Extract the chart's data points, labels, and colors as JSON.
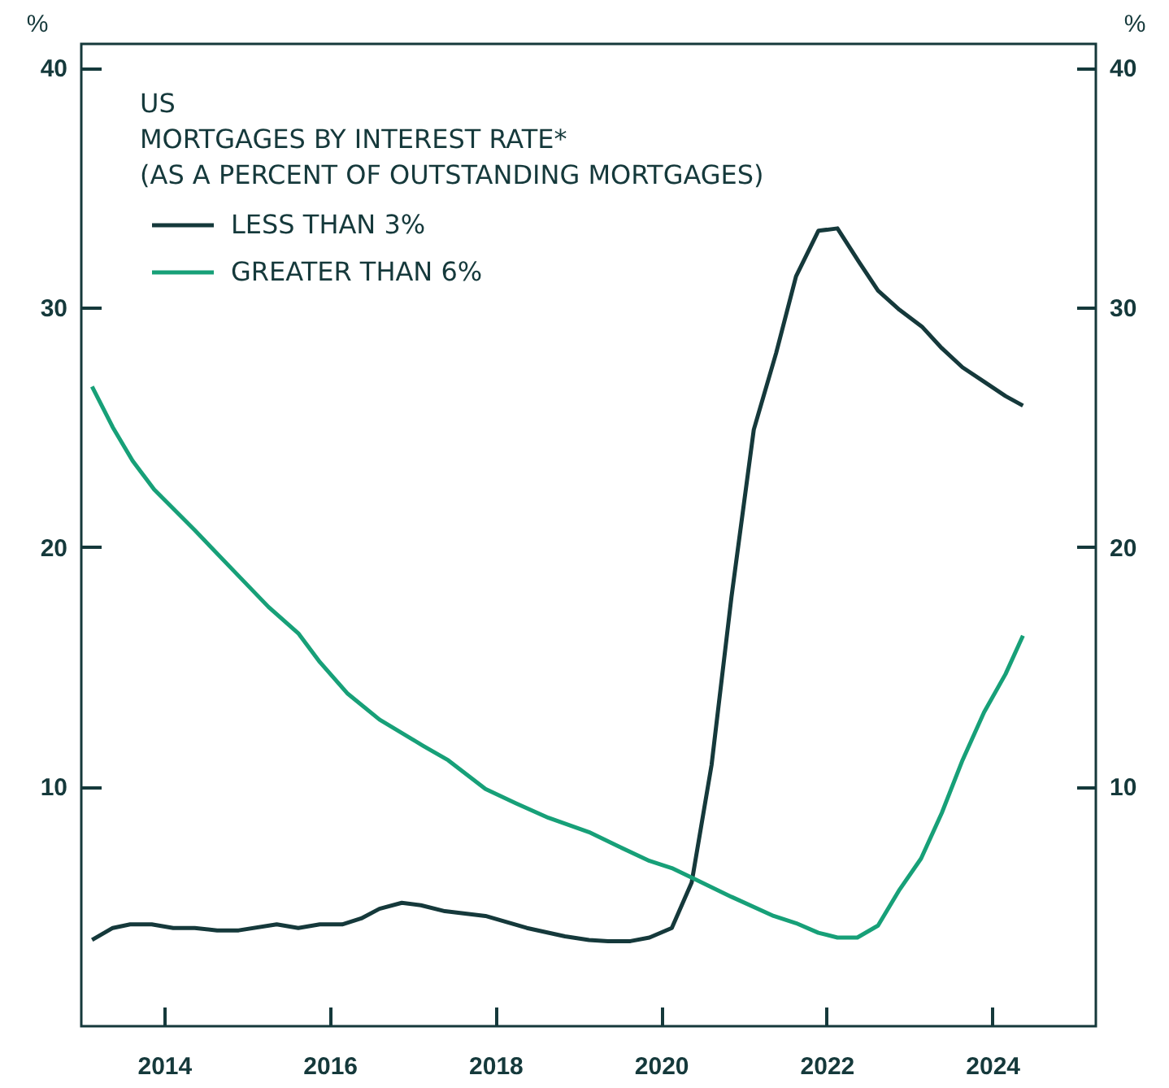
{
  "chart_data": {
    "type": "line",
    "title": "US",
    "subtitle": "MORTGAGES BY INTEREST RATE*\n(AS A PERCENT OF OUTSTANDING MORTGAGES)",
    "ylabel": "%",
    "y2label": "%",
    "xlim": [
      2013,
      2025.25
    ],
    "xticks": [
      2014,
      2016,
      2018,
      2020,
      2022,
      2024
    ],
    "ylim": [
      0,
      41
    ],
    "yticks": [
      10,
      20,
      30,
      40
    ],
    "y2lim": [
      0,
      41
    ],
    "y2ticks": [
      10,
      20,
      30,
      40
    ],
    "legend": "top left",
    "series": [
      {
        "name": "LESS THAN 3%",
        "color": "#15393b",
        "x": [
          2013.13,
          2013.38,
          2013.59,
          2013.85,
          2014.11,
          2014.37,
          2014.64,
          2014.9,
          2015.36,
          2015.62,
          2015.88,
          2016.15,
          2016.38,
          2016.6,
          2016.87,
          2017.1,
          2017.39,
          2017.88,
          2018.38,
          2018.84,
          2019.13,
          2019.36,
          2019.63,
          2019.86,
          2020.13,
          2020.37,
          2020.61,
          2020.85,
          2021.12,
          2021.39,
          2021.63,
          2021.9,
          2022.13,
          2022.39,
          2022.62,
          2022.88,
          2023.15,
          2023.39,
          2023.64,
          2023.9,
          2024.16,
          2024.37
        ],
        "values": [
          3.6,
          4.1,
          4.25,
          4.25,
          4.1,
          4.1,
          4.0,
          4.0,
          4.25,
          4.1,
          4.25,
          4.25,
          4.5,
          4.9,
          5.15,
          5.05,
          4.8,
          4.6,
          4.1,
          3.75,
          3.6,
          3.55,
          3.55,
          3.7,
          4.1,
          6.0,
          10.9,
          17.9,
          24.9,
          28.1,
          31.3,
          33.2,
          33.3,
          31.9,
          30.7,
          29.9,
          29.2,
          28.3,
          27.5,
          26.9,
          26.3,
          25.9
        ]
      },
      {
        "name": "GREATER THAN 6%",
        "color": "#17a078",
        "x": [
          2013.13,
          2013.38,
          2013.62,
          2013.88,
          2014.37,
          2014.87,
          2015.26,
          2015.62,
          2015.88,
          2016.21,
          2016.6,
          2017.13,
          2017.43,
          2017.88,
          2018.25,
          2018.64,
          2019.13,
          2019.49,
          2019.86,
          2020.13,
          2020.37,
          2020.85,
          2021.36,
          2021.63,
          2021.9,
          2022.13,
          2022.37,
          2022.62,
          2022.88,
          2023.14,
          2023.39,
          2023.64,
          2023.9,
          2024.16,
          2024.37
        ],
        "values": [
          26.7,
          25.0,
          23.6,
          22.4,
          20.7,
          18.9,
          17.5,
          16.4,
          15.2,
          13.9,
          12.8,
          11.7,
          11.1,
          9.9,
          9.3,
          8.7,
          8.1,
          7.5,
          6.9,
          6.6,
          6.2,
          5.4,
          4.6,
          4.3,
          3.9,
          3.7,
          3.7,
          4.2,
          5.7,
          7.0,
          8.9,
          11.1,
          13.1,
          14.7,
          16.3
        ]
      }
    ]
  }
}
